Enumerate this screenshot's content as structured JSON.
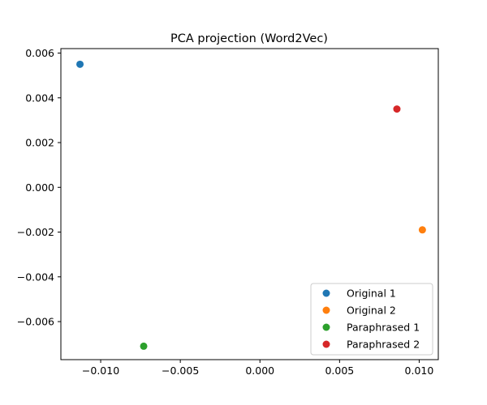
{
  "chart_data": {
    "type": "scatter",
    "title": "PCA projection (Word2Vec)",
    "xlabel": "",
    "ylabel": "",
    "xlim": [
      -0.0125,
      0.0112
    ],
    "ylim": [
      -0.0077,
      0.0062
    ],
    "grid": false,
    "legend_position": "lower-right",
    "x_ticks": [
      -0.01,
      -0.005,
      0.0,
      0.005,
      0.01
    ],
    "x_tick_labels": [
      "−0.010",
      "−0.005",
      "0.000",
      "0.005",
      "0.010"
    ],
    "y_ticks": [
      0.006,
      0.004,
      0.002,
      0.0,
      -0.002,
      -0.004,
      -0.006
    ],
    "y_tick_labels": [
      "0.006",
      "0.004",
      "0.002",
      "0.000",
      "−0.002",
      "−0.004",
      "−0.006"
    ],
    "series": [
      {
        "name": "Original 1",
        "color": "#1f77b4",
        "x": -0.0113,
        "y": 0.0055
      },
      {
        "name": "Original 2",
        "color": "#ff7f0e",
        "x": 0.0102,
        "y": -0.0019
      },
      {
        "name": "Paraphrased 1",
        "color": "#2ca02c",
        "x": -0.0073,
        "y": -0.0071
      },
      {
        "name": "Paraphrased 2",
        "color": "#d62728",
        "x": 0.0086,
        "y": 0.0035
      }
    ]
  }
}
